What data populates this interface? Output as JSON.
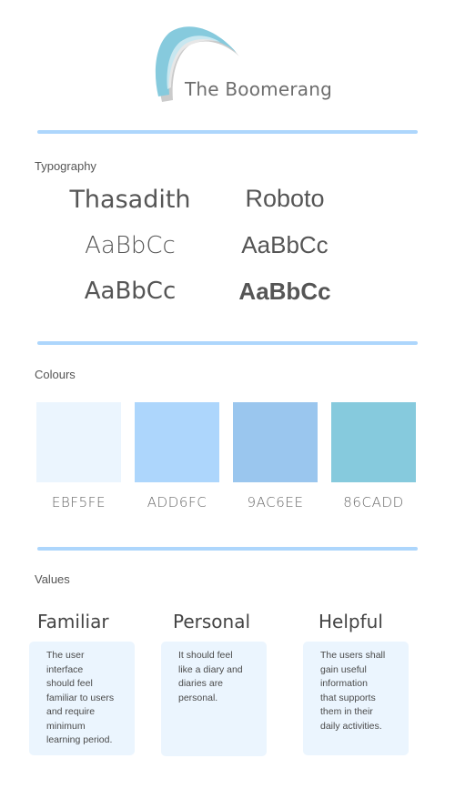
{
  "brand": {
    "logo_text": "The Boomerang"
  },
  "typography": {
    "title": "Typography",
    "fonts": [
      {
        "name": "Thasadith",
        "samples": [
          "AaBbCc",
          "AaBbCc"
        ]
      },
      {
        "name": "Roboto",
        "samples": [
          "AaBbCc",
          "AaBbCc"
        ]
      }
    ]
  },
  "colours": {
    "title": "Colours",
    "swatches": [
      {
        "hex_label": "EBF5FE",
        "color": "#EBF5FE"
      },
      {
        "hex_label": "ADD6FC",
        "color": "#ADD6FC"
      },
      {
        "hex_label": "9AC6EE",
        "color": "#9AC6EE"
      },
      {
        "hex_label": "86CADD",
        "color": "#86CADD"
      }
    ]
  },
  "values": {
    "title": "Values",
    "items": [
      {
        "name": "Familiar",
        "lines": [
          "The user",
          "interface",
          "should feel",
          "familiar to users",
          "and require",
          "minimum",
          "learning period."
        ]
      },
      {
        "name": "Personal",
        "lines": [
          "It should feel",
          "like a diary and",
          "diaries are",
          "personal."
        ]
      },
      {
        "name": "Helpful",
        "lines": [
          "The users shall",
          "gain useful",
          "information",
          "that supports",
          "them in their",
          "daily activities."
        ]
      }
    ]
  }
}
